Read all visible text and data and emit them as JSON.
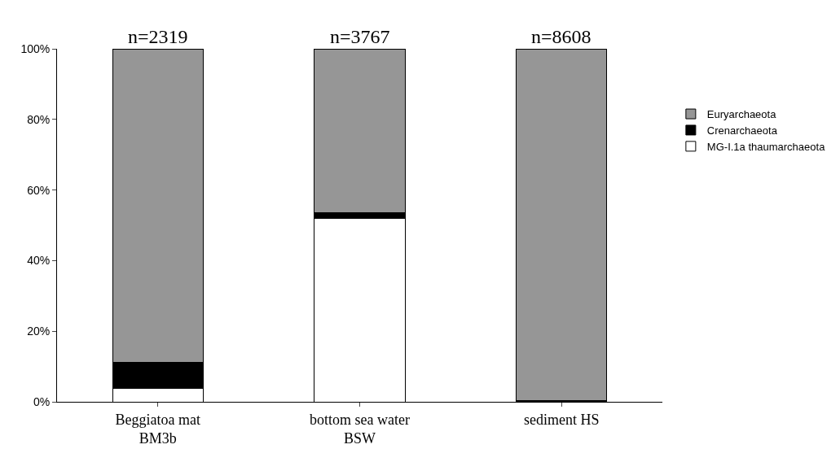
{
  "chart_data": {
    "type": "bar",
    "stacked": true,
    "categories": [
      "Beggiatoa mat\nBM3b",
      "bottom sea water\nBSW",
      "sediment HS"
    ],
    "series": [
      {
        "name": "MG-I.1a thaumarchaeota",
        "color": "#ffffff",
        "values": [
          3.7,
          52,
          0
        ]
      },
      {
        "name": "Crenarchaeota",
        "color": "#000000",
        "values": [
          7.4,
          1.6,
          0.3
        ]
      },
      {
        "name": "Euryarchaeota",
        "color": "#969696",
        "values": [
          88.9,
          46.4,
          99.7
        ]
      }
    ],
    "ylim": [
      0,
      100
    ],
    "yticks": [
      {
        "value": 0,
        "label": "0%"
      },
      {
        "value": 20,
        "label": "20%"
      },
      {
        "value": 40,
        "label": "40%"
      },
      {
        "value": 60,
        "label": "60%"
      },
      {
        "value": 80,
        "label": "80%"
      },
      {
        "value": 100,
        "label": "100%"
      }
    ],
    "annotations": [
      "n=2319",
      "n=3767",
      "n=8608"
    ],
    "legend": "right",
    "grid": false
  }
}
